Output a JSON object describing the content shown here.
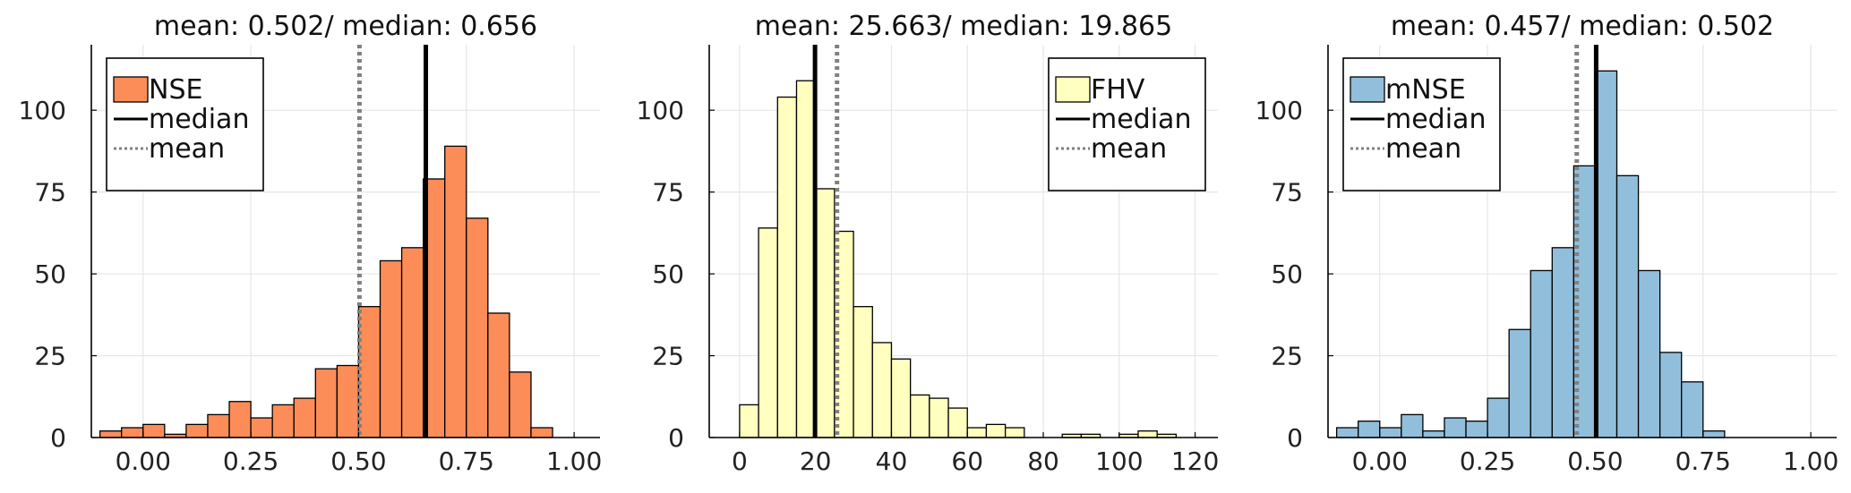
{
  "chart_data": [
    {
      "type": "bar",
      "title": "mean: 0.502/ median: 0.656",
      "series_name": "NSE",
      "color": "#fc8d59",
      "xlim": [
        -0.12,
        1.06
      ],
      "ylim": [
        0,
        120
      ],
      "xticks": [
        0.0,
        0.25,
        0.5,
        0.75,
        1.0
      ],
      "xtick_labels": [
        "0.00",
        "0.25",
        "0.50",
        "0.75",
        "1.00"
      ],
      "yticks": [
        0,
        25,
        50,
        75,
        100
      ],
      "bin_start": -0.1,
      "bin_width": 0.05,
      "counts": [
        2,
        3,
        4,
        1,
        4,
        7,
        11,
        6,
        10,
        12,
        21,
        22,
        40,
        54,
        58,
        79,
        89,
        67,
        38,
        20,
        3
      ],
      "median": 0.656,
      "mean": 0.502,
      "legend": {
        "position": "top-left",
        "items": [
          "NSE",
          "median",
          "mean"
        ]
      },
      "grid": true
    },
    {
      "type": "bar",
      "title": "mean: 25.663/ median: 19.865",
      "series_name": "FHV",
      "color": "#ffffbf",
      "xlim": [
        -8,
        126
      ],
      "ylim": [
        0,
        120
      ],
      "xticks": [
        0,
        20,
        40,
        60,
        80,
        100,
        120
      ],
      "xtick_labels": [
        "0",
        "20",
        "40",
        "60",
        "80",
        "100",
        "120"
      ],
      "yticks": [
        0,
        25,
        50,
        75,
        100
      ],
      "bin_start": 0,
      "bin_width": 5,
      "counts": [
        10,
        64,
        104,
        109,
        76,
        63,
        40,
        29,
        24,
        13,
        12,
        9,
        3,
        4,
        3,
        0,
        0,
        1,
        1,
        0,
        1,
        2,
        1
      ],
      "median": 19.865,
      "mean": 25.663,
      "legend": {
        "position": "top-right",
        "items": [
          "FHV",
          "median",
          "mean"
        ]
      },
      "grid": true
    },
    {
      "type": "bar",
      "title": "mean: 0.457/ median: 0.502",
      "series_name": "mNSE",
      "color": "#91bfdb",
      "xlim": [
        -0.12,
        1.06
      ],
      "ylim": [
        0,
        120
      ],
      "xticks": [
        0.0,
        0.25,
        0.5,
        0.75,
        1.0
      ],
      "xtick_labels": [
        "0.00",
        "0.25",
        "0.50",
        "0.75",
        "1.00"
      ],
      "yticks": [
        0,
        25,
        50,
        75,
        100
      ],
      "bin_start": -0.1,
      "bin_width": 0.05,
      "counts": [
        3,
        5,
        3,
        7,
        2,
        6,
        5,
        12,
        33,
        51,
        58,
        83,
        112,
        80,
        51,
        26,
        17,
        2
      ],
      "median": 0.502,
      "mean": 0.457,
      "legend": {
        "position": "top-left",
        "items": [
          "mNSE",
          "median",
          "mean"
        ]
      },
      "grid": true
    }
  ]
}
